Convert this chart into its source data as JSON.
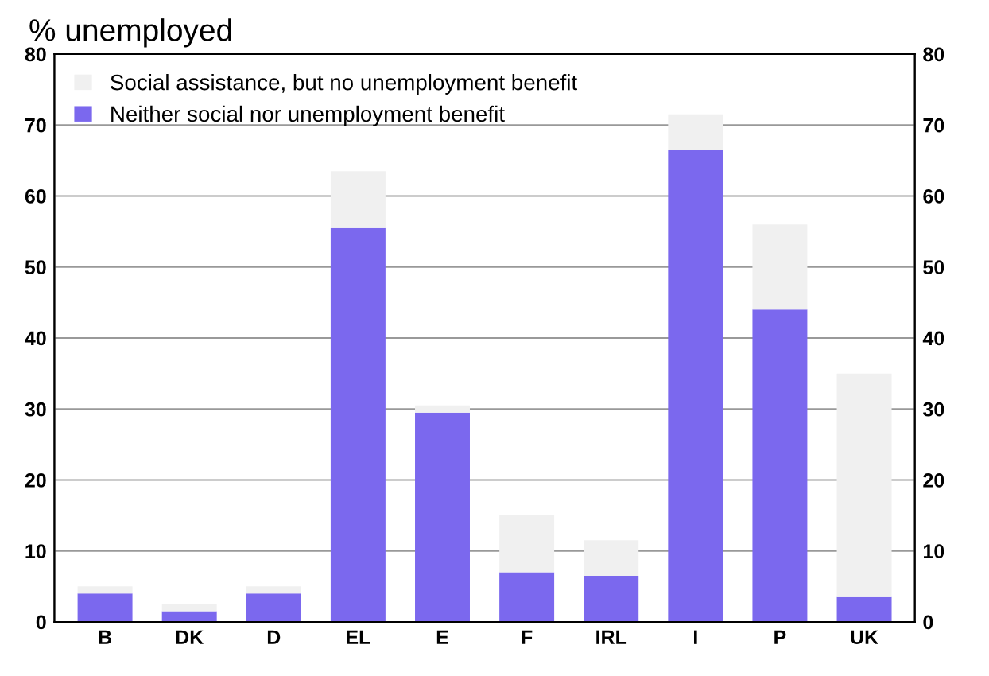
{
  "chart_data": {
    "type": "bar",
    "title": "% unemployed",
    "stacked": true,
    "categories": [
      "B",
      "DK",
      "D",
      "EL",
      "E",
      "F",
      "IRL",
      "I",
      "P",
      "UK"
    ],
    "series": [
      {
        "name": "Neither social nor unemployment benefit",
        "color": "#7b68ee",
        "values": [
          4,
          1.5,
          4,
          55.5,
          29.5,
          7,
          6.5,
          66.5,
          44,
          3.5
        ]
      },
      {
        "name": "Social assistance, but no unemployment benefit",
        "color": "#f0f0f0",
        "values": [
          1,
          1,
          1,
          8,
          1,
          8,
          5,
          5,
          12,
          31.5
        ]
      }
    ],
    "ylim": [
      0,
      80
    ],
    "yticks": [
      0,
      10,
      20,
      30,
      40,
      50,
      60,
      70,
      80
    ],
    "y2lim": [
      0,
      80
    ],
    "y2ticks": [
      0,
      10,
      20,
      30,
      40,
      50,
      60,
      70,
      80
    ],
    "grid": "y",
    "legend": "top left"
  }
}
